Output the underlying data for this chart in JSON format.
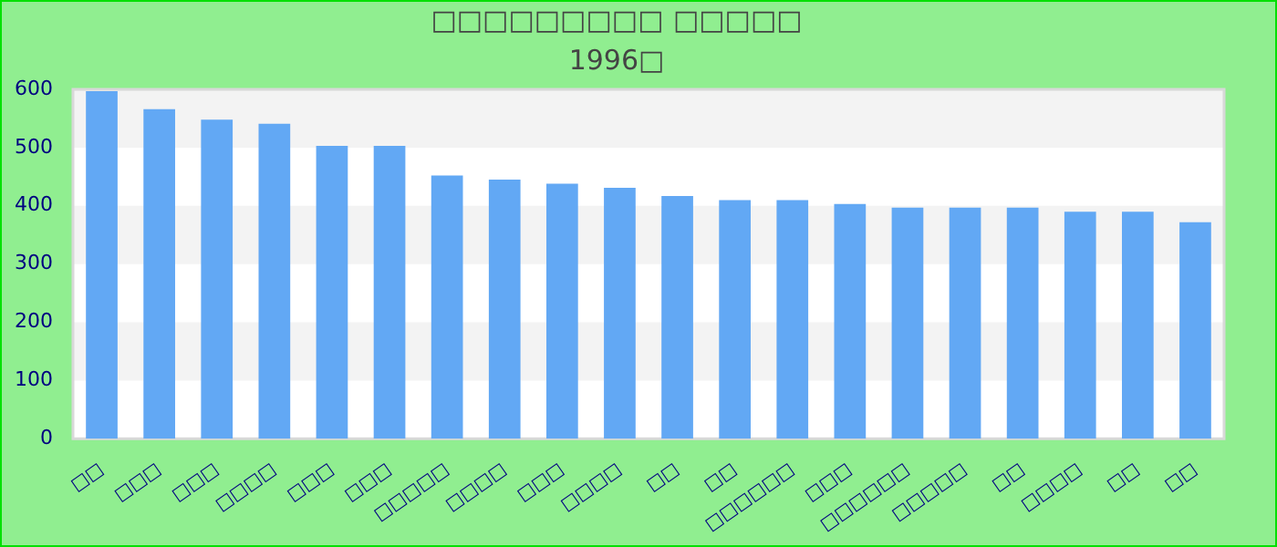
{
  "chart_data": {
    "type": "bar",
    "title": "□□□□□□□□□ □□□□□",
    "subtitle": "1996□",
    "categories": [
      "□□",
      "□□□",
      "□□□",
      "□□□□",
      "□□□",
      "□□□",
      "□□□□□",
      "□□□□",
      "□□□",
      "□□□□",
      "□□",
      "□□",
      "□□□□□□",
      "□□□",
      "□□□□□□",
      "□□□□□",
      "□□",
      "□□□□",
      "□□",
      "□□"
    ],
    "values": [
      597,
      566,
      548,
      541,
      503,
      503,
      452,
      445,
      438,
      431,
      417,
      410,
      410,
      403,
      397,
      397,
      397,
      390,
      390,
      372
    ],
    "color": "#62a8f4",
    "ylim": [
      0,
      600
    ],
    "yticks": [
      0,
      100,
      200,
      300,
      400,
      500,
      600
    ]
  }
}
